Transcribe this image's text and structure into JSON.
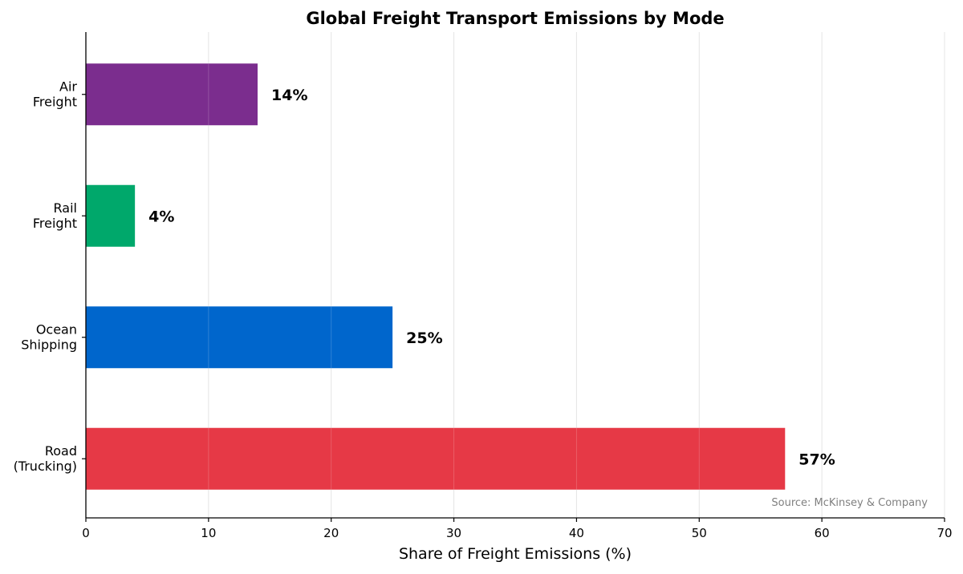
{
  "chart_data": {
    "type": "bar",
    "orientation": "horizontal",
    "title": "Global Freight Transport Emissions by Mode",
    "xlabel": "Share of Freight Emissions (%)",
    "ylabel": "",
    "xlim": [
      0,
      70
    ],
    "xticks": [
      0,
      10,
      20,
      30,
      40,
      50,
      60,
      70
    ],
    "grid": "vertical",
    "categories": [
      [
        "Air",
        "Freight"
      ],
      [
        "Rail",
        "Freight"
      ],
      [
        "Ocean",
        "Shipping"
      ],
      [
        "Road",
        "(Trucking)"
      ]
    ],
    "values": [
      14,
      4,
      25,
      57
    ],
    "data_labels": [
      "14%",
      "4%",
      "25%",
      "57%"
    ],
    "colors": [
      "#7B2D8E",
      "#00A86B",
      "#0066CC",
      "#E63946"
    ],
    "annotation": "Source: McKinsey & Company"
  }
}
